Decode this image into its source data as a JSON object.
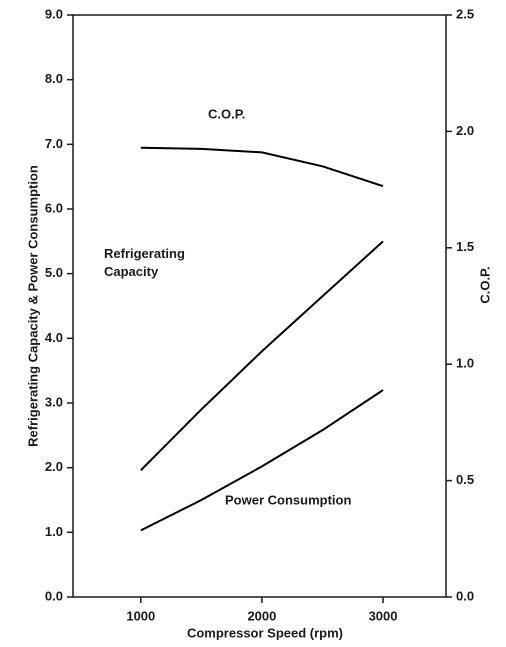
{
  "chart_data": {
    "type": "line",
    "xlabel": "Compressor Speed (rpm)",
    "ylabel": "Refrigerating Capacity & Power Consumption",
    "y2label": "C.O.P.",
    "x": [
      1000,
      1500,
      2000,
      2500,
      3000
    ],
    "series": [
      {
        "name": "C.O.P.",
        "color": "#000000",
        "axis": "y2",
        "values": [
          1.93,
          1.925,
          1.91,
          1.85,
          1.765
        ]
      },
      {
        "name": "Refrigerating Capacity",
        "color": "#000000",
        "values": [
          1.96,
          2.9,
          3.8,
          4.65,
          5.5
        ]
      },
      {
        "name": "Power Consumption",
        "color": "#000000",
        "values": [
          1.03,
          1.5,
          2.02,
          2.58,
          3.2
        ]
      }
    ],
    "xlim": [
      440,
      3520
    ],
    "xticks": [
      1000,
      2000,
      3000
    ],
    "ylim": [
      0,
      9
    ],
    "yticks": [
      {
        "value": 0,
        "label": "0.0"
      },
      {
        "value": 1,
        "label": "1.0"
      },
      {
        "value": 2,
        "label": "2.0"
      },
      {
        "value": 3,
        "label": "3.0"
      },
      {
        "value": 4,
        "label": "4.0"
      },
      {
        "value": 5,
        "label": "5.0"
      },
      {
        "value": 6,
        "label": "6.0"
      },
      {
        "value": 7,
        "label": "7.0"
      },
      {
        "value": 8,
        "label": "8.0"
      },
      {
        "value": 9,
        "label": "9.0"
      }
    ],
    "y2lim": [
      0,
      2.5
    ],
    "y2ticks": [
      {
        "value": 0,
        "label": "0.0"
      },
      0.5,
      {
        "value": 1,
        "label": "1.0"
      },
      1.5,
      {
        "value": 2,
        "label": "2.0"
      },
      2.5
    ],
    "grid": false
  }
}
